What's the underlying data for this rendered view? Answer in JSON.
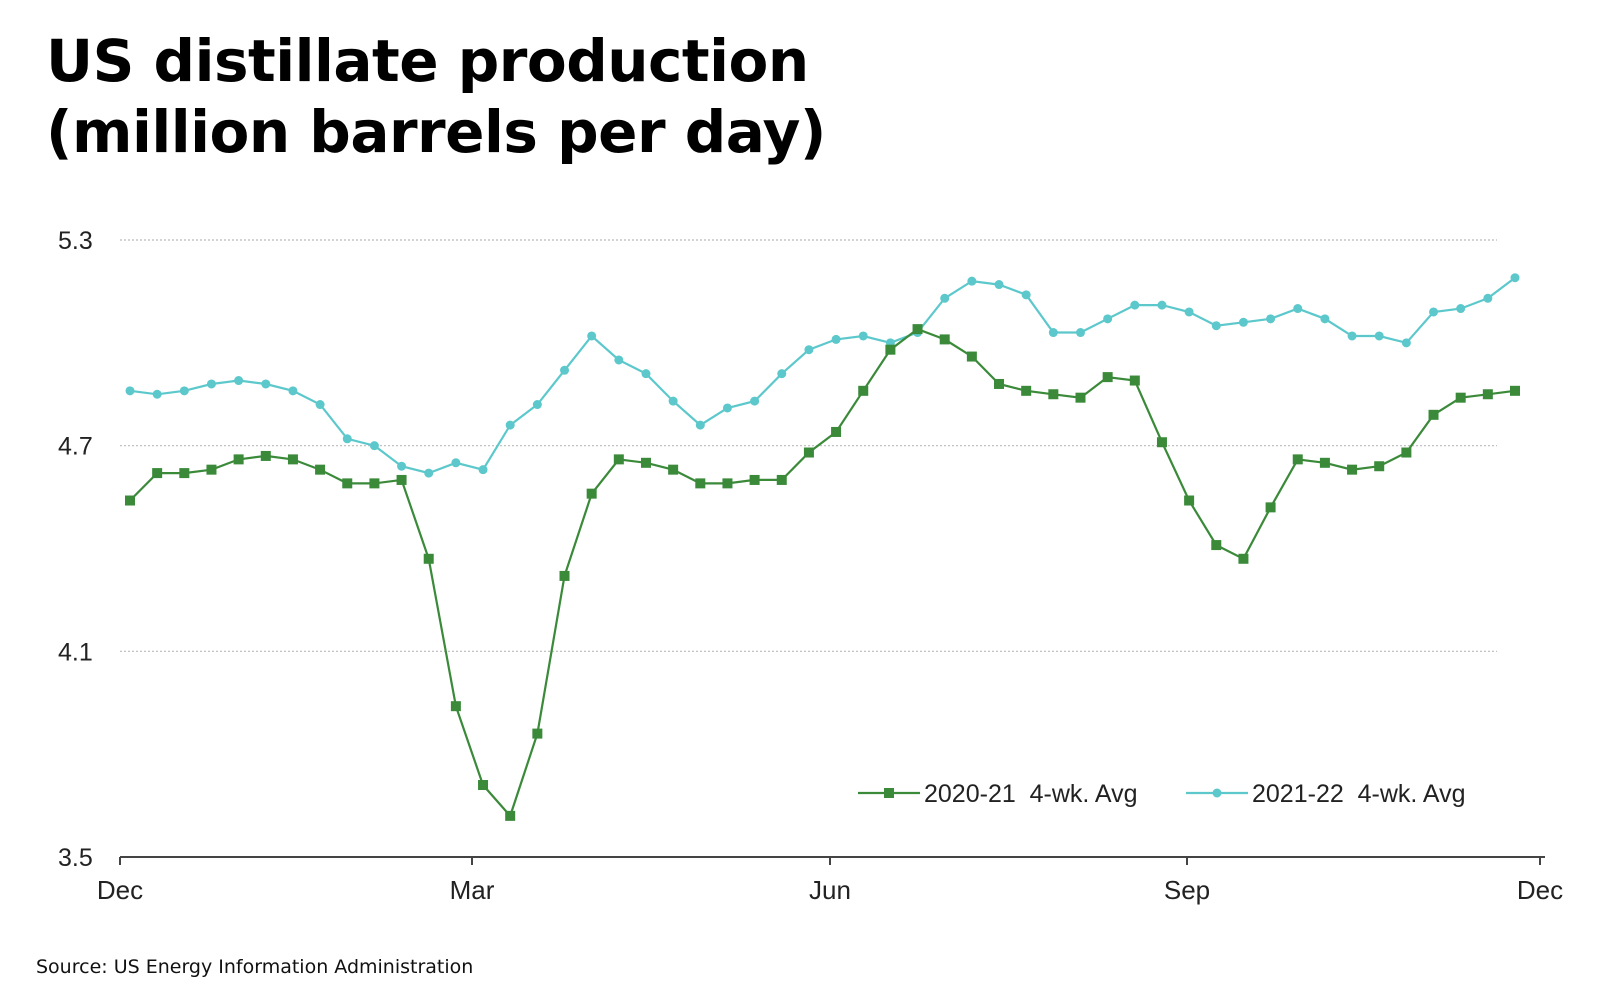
{
  "title": "US distillate production",
  "subtitle": "(million barrels per day)",
  "source": "Source: US Energy Information Administration",
  "colors": {
    "series_2020": "#3a8a3a",
    "series_2021": "#5cc8cc",
    "grid": "#bbbbbb",
    "axis": "#444444"
  },
  "chart_data": {
    "type": "line",
    "ylim": [
      3.5,
      5.3
    ],
    "yticks": [
      "3.5",
      "4.1",
      "4.7",
      "5.3"
    ],
    "xticks": [
      "Dec",
      "Mar",
      "Jun",
      "Sep",
      "Dec"
    ],
    "xlim": [
      0,
      52
    ],
    "grid": true,
    "legend": "bottom-right",
    "series": [
      {
        "name": "2020-21  4-wk. Avg",
        "marker": "square",
        "values": [
          4.54,
          4.62,
          4.62,
          4.63,
          4.66,
          4.67,
          4.66,
          4.63,
          4.59,
          4.59,
          4.6,
          4.37,
          3.94,
          3.71,
          3.62,
          3.86,
          4.32,
          4.56,
          4.66,
          4.65,
          4.63,
          4.59,
          4.59,
          4.6,
          4.6,
          4.68,
          4.74,
          4.86,
          4.98,
          5.04,
          5.01,
          4.96,
          4.88,
          4.86,
          4.85,
          4.84,
          4.9,
          4.89,
          4.71,
          4.54,
          4.41,
          4.37,
          4.52,
          4.66,
          4.65,
          4.63,
          4.64,
          4.68,
          4.79,
          4.84,
          4.85,
          4.86
        ]
      },
      {
        "name": "2021-22  4-wk. Avg",
        "marker": "circle",
        "values": [
          4.86,
          4.85,
          4.86,
          4.88,
          4.89,
          4.88,
          4.86,
          4.82,
          4.72,
          4.7,
          4.64,
          4.62,
          4.65,
          4.63,
          4.76,
          4.82,
          4.92,
          5.02,
          4.95,
          4.91,
          4.83,
          4.76,
          4.81,
          4.83,
          4.91,
          4.98,
          5.01,
          5.02,
          5.0,
          5.03,
          5.13,
          5.18,
          5.17,
          5.14,
          5.03,
          5.03,
          5.07,
          5.11,
          5.11,
          5.09,
          5.05,
          5.06,
          5.07,
          5.1,
          5.07,
          5.02,
          5.02,
          5.0,
          5.09,
          5.1,
          5.13,
          5.19
        ]
      }
    ]
  }
}
